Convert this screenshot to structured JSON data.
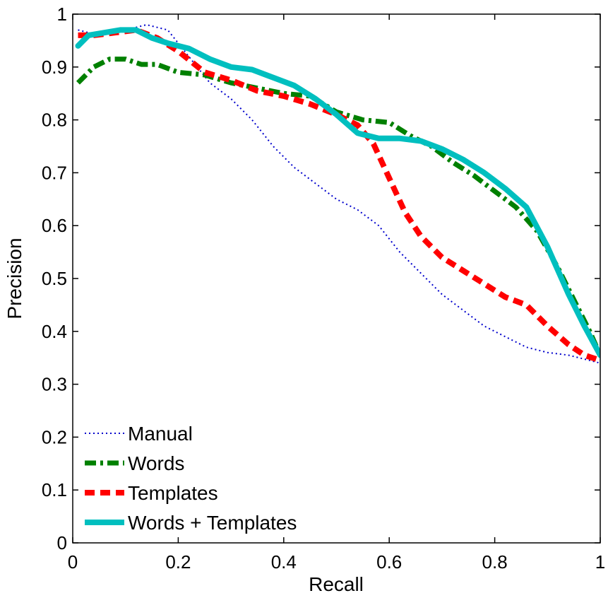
{
  "chart_data": {
    "type": "line",
    "title": "",
    "xlabel": "Recall",
    "ylabel": "Precision",
    "xlim": [
      0,
      1
    ],
    "ylim": [
      0,
      1
    ],
    "grid": false,
    "legend_position": "bottom-left",
    "xticks": [
      {
        "value": 0,
        "label": "0"
      },
      {
        "value": 0.2,
        "label": "0.2"
      },
      {
        "value": 0.4,
        "label": "0.4"
      },
      {
        "value": 0.6,
        "label": "0.6"
      },
      {
        "value": 0.8,
        "label": "0.8"
      },
      {
        "value": 1,
        "label": "1"
      }
    ],
    "yticks": [
      {
        "value": 0,
        "label": "0"
      },
      {
        "value": 0.1,
        "label": "0.1"
      },
      {
        "value": 0.2,
        "label": "0.2"
      },
      {
        "value": 0.3,
        "label": "0.3"
      },
      {
        "value": 0.4,
        "label": "0.4"
      },
      {
        "value": 0.5,
        "label": "0.5"
      },
      {
        "value": 0.6,
        "label": "0.6"
      },
      {
        "value": 0.7,
        "label": "0.7"
      },
      {
        "value": 0.8,
        "label": "0.8"
      },
      {
        "value": 0.9,
        "label": "0.9"
      },
      {
        "value": 1,
        "label": "1"
      }
    ],
    "series": [
      {
        "name": "Manual",
        "color": "#0000cc",
        "style": "dotted",
        "x": [
          0.01,
          0.05,
          0.1,
          0.14,
          0.18,
          0.22,
          0.26,
          0.3,
          0.34,
          0.38,
          0.42,
          0.46,
          0.5,
          0.54,
          0.58,
          0.62,
          0.66,
          0.7,
          0.74,
          0.78,
          0.82,
          0.86,
          0.9,
          0.94,
          0.98,
          1.0
        ],
        "y": [
          0.97,
          0.96,
          0.97,
          0.98,
          0.97,
          0.92,
          0.87,
          0.84,
          0.8,
          0.75,
          0.71,
          0.68,
          0.65,
          0.63,
          0.6,
          0.55,
          0.51,
          0.47,
          0.44,
          0.41,
          0.39,
          0.37,
          0.36,
          0.355,
          0.345,
          0.34
        ]
      },
      {
        "name": "Words",
        "color": "#008000",
        "style": "dashdot",
        "x": [
          0.01,
          0.04,
          0.07,
          0.1,
          0.13,
          0.16,
          0.2,
          0.25,
          0.3,
          0.35,
          0.4,
          0.45,
          0.5,
          0.55,
          0.6,
          0.64,
          0.68,
          0.72,
          0.76,
          0.8,
          0.84,
          0.88,
          0.92,
          0.95,
          0.98,
          1.0
        ],
        "y": [
          0.87,
          0.9,
          0.915,
          0.915,
          0.905,
          0.905,
          0.89,
          0.885,
          0.87,
          0.86,
          0.85,
          0.845,
          0.815,
          0.8,
          0.795,
          0.77,
          0.75,
          0.72,
          0.695,
          0.665,
          0.635,
          0.59,
          0.52,
          0.46,
          0.4,
          0.355
        ]
      },
      {
        "name": "Templates",
        "color": "#ff0000",
        "style": "dashed",
        "x": [
          0.01,
          0.04,
          0.08,
          0.12,
          0.16,
          0.2,
          0.25,
          0.3,
          0.35,
          0.4,
          0.45,
          0.5,
          0.54,
          0.57,
          0.6,
          0.63,
          0.66,
          0.7,
          0.74,
          0.78,
          0.82,
          0.86,
          0.9,
          0.94,
          0.97,
          1.0
        ],
        "y": [
          0.96,
          0.96,
          0.965,
          0.97,
          0.955,
          0.93,
          0.89,
          0.875,
          0.855,
          0.845,
          0.83,
          0.81,
          0.79,
          0.755,
          0.69,
          0.625,
          0.58,
          0.54,
          0.515,
          0.49,
          0.465,
          0.45,
          0.41,
          0.375,
          0.355,
          0.345
        ]
      },
      {
        "name": "Words + Templates",
        "color": "#00bfbf",
        "style": "solid",
        "x": [
          0.01,
          0.03,
          0.06,
          0.09,
          0.12,
          0.15,
          0.18,
          0.22,
          0.26,
          0.3,
          0.34,
          0.38,
          0.42,
          0.46,
          0.5,
          0.54,
          0.58,
          0.62,
          0.66,
          0.7,
          0.74,
          0.78,
          0.82,
          0.86,
          0.9,
          0.94,
          0.97,
          1.0
        ],
        "y": [
          0.94,
          0.96,
          0.965,
          0.97,
          0.97,
          0.955,
          0.945,
          0.935,
          0.915,
          0.9,
          0.895,
          0.88,
          0.865,
          0.84,
          0.81,
          0.775,
          0.765,
          0.765,
          0.76,
          0.745,
          0.725,
          0.7,
          0.67,
          0.635,
          0.56,
          0.47,
          0.41,
          0.355
        ]
      }
    ]
  }
}
